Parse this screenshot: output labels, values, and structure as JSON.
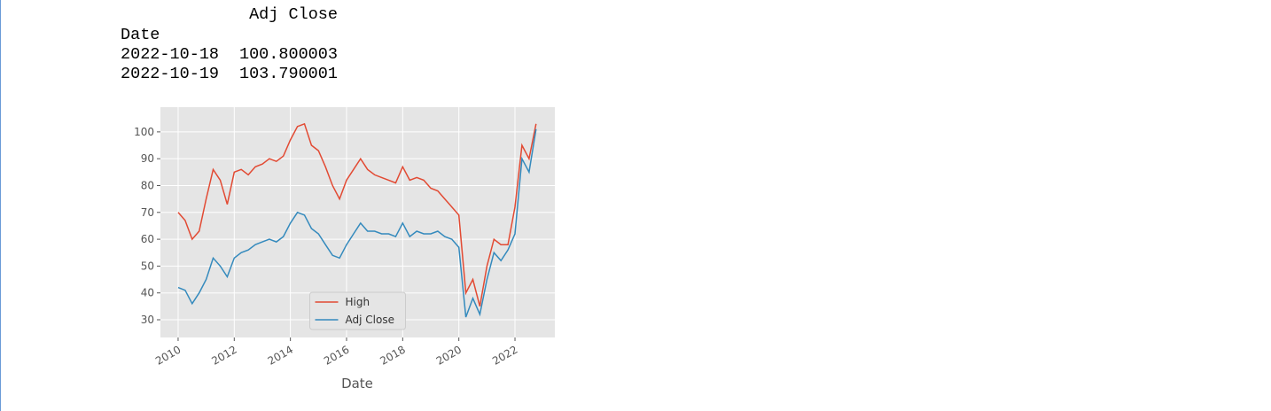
{
  "dataframe": {
    "header": "Adj Close",
    "index_name": "Date",
    "rows": [
      [
        "2022-10-18",
        100.800003
      ],
      [
        "2022-10-19",
        103.790001
      ]
    ]
  },
  "chart_data": {
    "type": "line",
    "xlabel": "Date",
    "x": [
      2010.0,
      2010.25,
      2010.5,
      2010.75,
      2011.0,
      2011.25,
      2011.5,
      2011.75,
      2012.0,
      2012.25,
      2012.5,
      2012.75,
      2013.0,
      2013.25,
      2013.5,
      2013.75,
      2014.0,
      2014.25,
      2014.5,
      2014.75,
      2015.0,
      2015.25,
      2015.5,
      2015.75,
      2016.0,
      2016.25,
      2016.5,
      2016.75,
      2017.0,
      2017.25,
      2017.5,
      2017.75,
      2018.0,
      2018.25,
      2018.5,
      2018.75,
      2019.0,
      2019.25,
      2019.5,
      2019.75,
      2020.0,
      2020.25,
      2020.5,
      2020.75,
      2021.0,
      2021.25,
      2021.5,
      2021.75,
      2022.0,
      2022.25,
      2022.5,
      2022.75
    ],
    "series": [
      {
        "name": "High",
        "color": "#e24a33",
        "values": [
          70,
          67,
          60,
          63,
          75,
          86,
          82,
          73,
          85,
          86,
          84,
          87,
          88,
          90,
          89,
          91,
          97,
          102,
          103,
          95,
          93,
          87,
          80,
          75,
          82,
          86,
          90,
          86,
          84,
          83,
          82,
          81,
          87,
          82,
          83,
          82,
          79,
          78,
          75,
          72,
          69,
          40,
          45,
          35,
          50,
          60,
          58,
          58,
          72,
          95,
          90,
          103
        ]
      },
      {
        "name": "Adj Close",
        "color": "#348abd",
        "values": [
          42,
          41,
          36,
          40,
          45,
          53,
          50,
          46,
          53,
          55,
          56,
          58,
          59,
          60,
          59,
          61,
          66,
          70,
          69,
          64,
          62,
          58,
          54,
          53,
          58,
          62,
          66,
          63,
          63,
          62,
          62,
          61,
          66,
          61,
          63,
          62,
          62,
          63,
          61,
          60,
          57,
          31,
          38,
          32,
          45,
          55,
          52,
          56,
          62,
          90,
          85,
          101
        ]
      }
    ],
    "xlim": [
      2009.37,
      2023.42
    ],
    "xticks": [
      2010,
      2012,
      2014,
      2016,
      2018,
      2020,
      2022
    ],
    "ylim": [
      23.4,
      109.2
    ],
    "yticks": [
      30,
      40,
      50,
      60,
      70,
      80,
      90,
      100
    ],
    "grid": true,
    "legend": "lower center"
  }
}
